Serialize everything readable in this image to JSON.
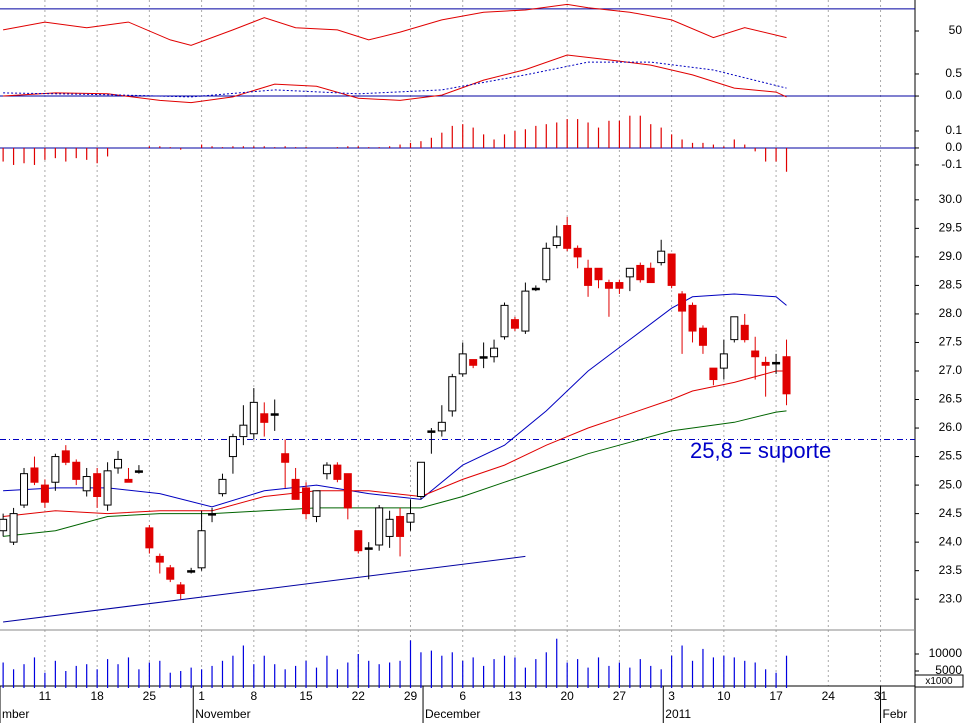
{
  "chart_data": [
    {
      "type": "line",
      "ylim": [
        22,
        78
      ],
      "yticks": [
        50
      ],
      "hlines": [
        70
      ],
      "hline_color": "#0000a0",
      "series": [
        {
          "color": "#e00000",
          "x": [
            0,
            4,
            8,
            12,
            16,
            18,
            22,
            25,
            28,
            32,
            35,
            38,
            42,
            46,
            50,
            54,
            56,
            60,
            64,
            68,
            71,
            75
          ],
          "values": [
            51,
            58,
            53,
            58,
            42,
            37,
            51,
            62,
            53,
            51,
            42,
            49,
            60,
            67,
            69,
            74,
            71,
            67,
            60,
            44,
            53,
            44
          ]
        }
      ]
    },
    {
      "type": "line",
      "ylim": [
        -0.43,
        1.27
      ],
      "yticks": [
        0.5,
        {
          "value": 0,
          "label": "0.0"
        }
      ],
      "hlines": [
        0
      ],
      "hline_color": "#0000a0",
      "series": [
        {
          "color": "#e00000",
          "x": [
            0,
            5,
            10,
            15,
            18,
            22,
            26,
            30,
            34,
            38,
            42,
            46,
            50,
            54,
            58,
            62,
            66,
            70,
            74,
            75
          ],
          "values": [
            0,
            0.07,
            0.05,
            -0.1,
            -0.15,
            -0.02,
            0.27,
            0.22,
            -0.05,
            -0.1,
            0.02,
            0.36,
            0.6,
            0.93,
            0.82,
            0.7,
            0.48,
            0.18,
            0.09,
            -0.02
          ]
        },
        {
          "color": "#0000c0",
          "dashed": true,
          "x": [
            0,
            10,
            18,
            26,
            34,
            42,
            50,
            56,
            62,
            68,
            75
          ],
          "values": [
            0.07,
            0.03,
            -0.02,
            0.14,
            0.05,
            0.14,
            0.48,
            0.77,
            0.77,
            0.59,
            0.18
          ]
        }
      ]
    },
    {
      "type": "bar",
      "ylim": [
        -0.218,
        0.194
      ],
      "yticks": [
        0.1,
        {
          "value": 0,
          "label": "0.0"
        },
        -0.1
      ],
      "hlines": [
        0
      ],
      "hline_color": "#0000a0",
      "color": "#e00000",
      "values": [
        -0.08,
        -0.1,
        -0.09,
        -0.1,
        -0.07,
        -0.06,
        -0.08,
        -0.06,
        -0.07,
        -0.09,
        -0.05,
        0,
        0,
        0,
        0.01,
        0.01,
        0.005,
        -0.01,
        0,
        0.02,
        0.01,
        0.005,
        0.01,
        0.01,
        0.01,
        0.01,
        0.005,
        0.01,
        0.005,
        0.005,
        0,
        0,
        0.005,
        0.01,
        0.01,
        0.005,
        0.005,
        0.01,
        0.02,
        0.03,
        0.04,
        0.06,
        0.09,
        0.13,
        0.14,
        0.12,
        0.08,
        0.05,
        0.08,
        0.1,
        0.11,
        0.13,
        0.14,
        0.15,
        0.17,
        0.17,
        0.15,
        0.12,
        0.16,
        0.16,
        0.19,
        0.19,
        0.14,
        0.12,
        0.08,
        0.05,
        0.03,
        0.03,
        0.02,
        0.01,
        0.05,
        0.02,
        -0.02,
        -0.08,
        -0.08,
        -0.14
      ]
    },
    {
      "type": "candlestick",
      "ylim": [
        22.46,
        30.26
      ],
      "yticks": [
        {
          "value": 23,
          "label": "23.0"
        },
        23.5,
        {
          "value": 24,
          "label": "24.0"
        },
        24.5,
        {
          "value": 25,
          "label": "25.0"
        },
        25.5,
        {
          "value": 26,
          "label": "26.0"
        },
        26.5,
        {
          "value": 27,
          "label": "27.0"
        },
        27.5,
        {
          "value": 28,
          "label": "28.0"
        },
        28.5,
        {
          "value": 29,
          "label": "29.0"
        },
        29.5,
        {
          "value": 30,
          "label": "30.0"
        }
      ],
      "colors": {
        "up": "#ffffff",
        "down": "#e00000",
        "flat": "#000000"
      },
      "open": [
        24.2,
        24.0,
        24.65,
        25.3,
        25.0,
        25.05,
        25.6,
        25.4,
        24.9,
        25.2,
        24.65,
        25.3,
        25.1,
        25.25,
        24.25,
        23.75,
        23.55,
        23.25,
        23.5,
        23.55,
        24.5,
        24.85,
        25.5,
        25.85,
        25.9,
        26.25,
        26.25,
        25.55,
        25.1,
        24.95,
        24.45,
        25.2,
        25.35,
        25.2,
        24.2,
        23.9,
        23.95,
        24.1,
        24.45,
        24.35,
        24.8,
        25.95,
        25.95,
        26.3,
        26.95,
        27.2,
        27.25,
        27.25,
        27.6,
        27.9,
        27.7,
        28.45,
        28.6,
        29.2,
        29.55,
        29.15,
        28.8,
        28.8,
        28.55,
        28.55,
        28.65,
        28.85,
        28.8,
        28.9,
        29.05,
        28.35,
        28.15,
        27.75,
        27.05,
        27.05,
        27.55,
        27.8,
        27.35,
        27.15,
        27.15,
        27.25
      ],
      "high": [
        24.5,
        24.6,
        25.3,
        25.5,
        25.1,
        25.55,
        25.7,
        25.45,
        25.3,
        25.3,
        25.4,
        25.6,
        25.3,
        25.35,
        24.3,
        23.8,
        23.6,
        23.3,
        23.55,
        24.55,
        24.6,
        25.2,
        25.9,
        26.4,
        26.7,
        26.45,
        26.5,
        25.8,
        25.3,
        25.05,
        24.9,
        25.4,
        25.4,
        25.2,
        24.2,
        24.0,
        24.65,
        24.55,
        24.6,
        24.75,
        25.4,
        26.0,
        26.4,
        26.95,
        27.5,
        27.2,
        27.5,
        27.55,
        28.2,
        27.95,
        28.55,
        28.5,
        29.25,
        29.55,
        29.7,
        29.2,
        28.95,
        28.8,
        28.6,
        28.6,
        28.8,
        28.9,
        28.9,
        29.3,
        29.05,
        28.4,
        28.2,
        27.8,
        27.05,
        27.55,
        27.95,
        28.0,
        27.6,
        27.25,
        27.3,
        27.55
      ],
      "low": [
        24.1,
        23.95,
        24.6,
        25.0,
        24.6,
        24.9,
        25.35,
        25.0,
        24.8,
        24.6,
        24.55,
        25.2,
        25.05,
        25.2,
        23.8,
        23.45,
        23.3,
        23.0,
        23.45,
        23.5,
        24.35,
        24.8,
        25.2,
        25.7,
        25.8,
        25.85,
        25.95,
        24.95,
        24.75,
        24.4,
        24.35,
        25.1,
        25.05,
        24.4,
        23.8,
        23.35,
        23.85,
        23.9,
        23.75,
        24.2,
        24.75,
        25.55,
        25.85,
        26.2,
        26.9,
        27.05,
        27.05,
        27.15,
        27.55,
        27.7,
        27.65,
        28.4,
        28.55,
        29.15,
        29.1,
        28.8,
        28.3,
        28.45,
        27.95,
        28.35,
        28.4,
        28.55,
        28.55,
        28.85,
        28.45,
        27.3,
        27.5,
        27.3,
        26.75,
        26.85,
        27.5,
        27.5,
        26.85,
        26.55,
        26.95,
        26.4
      ],
      "close": [
        24.4,
        24.5,
        25.2,
        25.05,
        24.7,
        25.5,
        25.4,
        25.1,
        25.15,
        24.8,
        25.25,
        25.45,
        25.05,
        25.25,
        23.9,
        23.65,
        23.35,
        23.1,
        23.5,
        24.2,
        24.5,
        25.1,
        25.85,
        26.05,
        26.45,
        26.1,
        26.25,
        25.4,
        24.75,
        24.5,
        24.9,
        25.35,
        25.1,
        24.6,
        23.85,
        23.9,
        24.6,
        24.4,
        24.1,
        24.5,
        25.4,
        25.95,
        26.1,
        26.9,
        27.3,
        27.1,
        27.25,
        27.4,
        28.15,
        27.75,
        28.4,
        28.45,
        29.15,
        29.35,
        29.15,
        29.0,
        28.5,
        28.6,
        28.45,
        28.45,
        28.8,
        28.6,
        28.55,
        29.1,
        28.5,
        28.05,
        27.7,
        27.45,
        26.85,
        27.3,
        27.95,
        27.55,
        27.25,
        27.1,
        27.15,
        26.6
      ],
      "series": [
        {
          "color": "#0000c0",
          "x": [
            0,
            5,
            10,
            15,
            20,
            25,
            30,
            35,
            40,
            44,
            48,
            52,
            56,
            60,
            64,
            66,
            70,
            74,
            75
          ],
          "values": [
            24.9,
            24.95,
            24.95,
            24.85,
            24.62,
            24.9,
            25.0,
            24.85,
            24.75,
            25.35,
            25.7,
            26.3,
            27.0,
            27.55,
            28.1,
            28.3,
            28.35,
            28.3,
            28.15
          ]
        },
        {
          "color": "#e00000",
          "x": [
            0,
            5,
            10,
            15,
            20,
            25,
            30,
            35,
            40,
            44,
            48,
            52,
            56,
            60,
            64,
            66,
            70,
            74,
            75
          ],
          "values": [
            24.45,
            24.55,
            24.5,
            24.55,
            24.55,
            24.8,
            24.9,
            24.9,
            24.8,
            25.1,
            25.35,
            25.7,
            26.0,
            26.25,
            26.5,
            26.65,
            26.8,
            27.0,
            27.0
          ]
        },
        {
          "color": "#006400",
          "x": [
            0,
            5,
            10,
            15,
            20,
            25,
            30,
            35,
            40,
            44,
            48,
            52,
            56,
            60,
            64,
            66,
            70,
            74,
            75
          ],
          "values": [
            24.1,
            24.2,
            24.45,
            24.5,
            24.5,
            24.55,
            24.6,
            24.6,
            24.6,
            24.8,
            25.05,
            25.3,
            25.55,
            25.75,
            25.95,
            26.0,
            26.1,
            26.28,
            26.3
          ]
        }
      ],
      "trendline": {
        "color": "#0000a0",
        "x": [
          0,
          50
        ],
        "values": [
          22.6,
          23.75
        ]
      },
      "support": {
        "value": 25.8,
        "color": "#0000c0"
      },
      "annotation": "25,8 = suporte"
    },
    {
      "type": "bar",
      "ylim": [
        0,
        15000
      ],
      "yticks": [
        10000,
        5000
      ],
      "unit_label": "x1000",
      "color": "#0000e0",
      "values": [
        7500,
        5500,
        7000,
        9000,
        4500,
        8000,
        5000,
        6500,
        7000,
        5500,
        8500,
        7000,
        9000,
        5500,
        7500,
        8000,
        4500,
        5000,
        6000,
        5500,
        6500,
        8000,
        9500,
        12500,
        7000,
        9500,
        7000,
        5500,
        6500,
        8000,
        6000,
        9500,
        5500,
        7500,
        10000,
        8000,
        7000,
        7500,
        8000,
        14000,
        10500,
        11000,
        9500,
        10500,
        8000,
        9000,
        6500,
        8500,
        9500,
        9000,
        6000,
        8500,
        10500,
        14500,
        7500,
        8500,
        6000,
        9000,
        6500,
        7500,
        6000,
        8500,
        6500,
        5500,
        9500,
        12500,
        8000,
        11500,
        9000,
        9500,
        9000,
        8000,
        7500,
        5500,
        4500,
        9500
      ],
      "xlim": [
        -0.3,
        87.3
      ],
      "xticks": [
        {
          "value": 4,
          "label": "11"
        },
        {
          "value": 9,
          "label": "18"
        },
        {
          "value": 14,
          "label": "25"
        },
        {
          "value": 19,
          "label": "1"
        },
        {
          "value": 24,
          "label": "8"
        },
        {
          "value": 29,
          "label": "15"
        },
        {
          "value": 34,
          "label": "22"
        },
        {
          "value": 39,
          "label": "29"
        },
        {
          "value": 44,
          "label": "6"
        },
        {
          "value": 49,
          "label": "13"
        },
        {
          "value": 54,
          "label": "20"
        },
        {
          "value": 59,
          "label": "27"
        },
        {
          "value": 64,
          "label": "3"
        },
        {
          "value": 69,
          "label": "10"
        },
        {
          "value": 74,
          "label": "17"
        },
        {
          "value": 79,
          "label": "24"
        },
        {
          "value": 84,
          "label": "31"
        }
      ],
      "month_ticks": [
        {
          "value": -0.3,
          "label": "mber"
        },
        {
          "value": 18.2,
          "label": "November"
        },
        {
          "value": 40.2,
          "label": "December"
        },
        {
          "value": 63.2,
          "label": "2011"
        },
        {
          "value": 84,
          "label": "Febr"
        }
      ]
    }
  ]
}
